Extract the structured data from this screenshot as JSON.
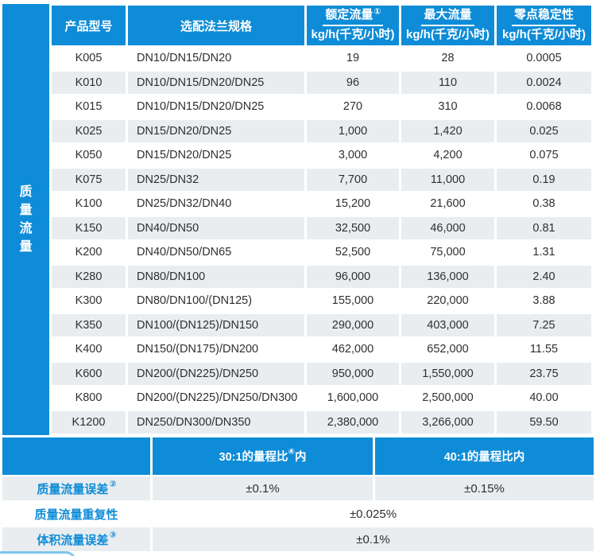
{
  "colors": {
    "accent_blue": "#0f8cd7",
    "row_alt_gray": "#e9edf0",
    "decor_light_blue": "#7ec6e9",
    "text_dark": "#2f2f2f"
  },
  "main_table": {
    "side_label": "质量流量",
    "side_label_chars": [
      "质",
      "量",
      "流",
      "量"
    ],
    "columns": [
      {
        "label": "产品型号",
        "sup": "",
        "unit": ""
      },
      {
        "label": "选配法兰规格",
        "sup": "",
        "unit": ""
      },
      {
        "label": "额定流量",
        "sup": "①",
        "unit": "kg/h(千克/小时)"
      },
      {
        "label": "最大流量",
        "sup": "",
        "unit": "kg/h(千克/小时)"
      },
      {
        "label": "零点稳定性",
        "sup": "",
        "unit": "kg/h(千克/小时)"
      }
    ],
    "rows": [
      {
        "model": "K005",
        "flange": "DN10/DN15/DN20",
        "rated": "19",
        "max": "28",
        "zero": "0.0005"
      },
      {
        "model": "K010",
        "flange": "DN10/DN15/DN20/DN25",
        "rated": "96",
        "max": "110",
        "zero": "0.0024"
      },
      {
        "model": "K015",
        "flange": "DN10/DN15/DN20/DN25",
        "rated": "270",
        "max": "310",
        "zero": "0.0068"
      },
      {
        "model": "K025",
        "flange": "DN15/DN20/DN25",
        "rated": "1,000",
        "max": "1,420",
        "zero": "0.025"
      },
      {
        "model": "K050",
        "flange": "DN15/DN20/DN25",
        "rated": "3,000",
        "max": "4,200",
        "zero": "0.075"
      },
      {
        "model": "K075",
        "flange": "DN25/DN32",
        "rated": "7,700",
        "max": "11,000",
        "zero": "0.19"
      },
      {
        "model": "K100",
        "flange": "DN25/DN32/DN40",
        "rated": "15,200",
        "max": "21,600",
        "zero": "0.38"
      },
      {
        "model": "K150",
        "flange": "DN40/DN50",
        "rated": "32,500",
        "max": "46,000",
        "zero": "0.81"
      },
      {
        "model": "K200",
        "flange": "DN40/DN50/DN65",
        "rated": "52,500",
        "max": "75,000",
        "zero": "1.31"
      },
      {
        "model": "K280",
        "flange": "DN80/DN100",
        "rated": "96,000",
        "max": "136,000",
        "zero": "2.40"
      },
      {
        "model": "K300",
        "flange": "DN80/DN100/(DN125)",
        "rated": "155,000",
        "max": "220,000",
        "zero": "3.88"
      },
      {
        "model": "K350",
        "flange": "DN100/(DN125)/DN150",
        "rated": "290,000",
        "max": "403,000",
        "zero": "7.25"
      },
      {
        "model": "K400",
        "flange": "DN150/(DN175)/DN200",
        "rated": "462,000",
        "max": "652,000",
        "zero": "11.55"
      },
      {
        "model": "K600",
        "flange": "DN200/(DN225)/DN250",
        "rated": "950,000",
        "max": "1,550,000",
        "zero": "23.75"
      },
      {
        "model": "K800",
        "flange": "DN200/(DN225)/DN250/DN300",
        "rated": "1,600,000",
        "max": "2,500,000",
        "zero": "40.00"
      },
      {
        "model": "K1200",
        "flange": "DN250/DN300/DN350",
        "rated": "2,380,000",
        "max": "3,266,000",
        "zero": "59.50"
      }
    ]
  },
  "accuracy_table": {
    "range_headers": [
      {
        "before": "30:1的量程比",
        "sup": "④",
        "after": "内"
      },
      {
        "before": "40:1的量程比内",
        "sup": "",
        "after": ""
      }
    ],
    "rows": [
      {
        "label": "质量流量误差",
        "sup": "②",
        "values": [
          "±0.1%",
          "±0.15%"
        ]
      },
      {
        "label": "质量流量重复性",
        "sup": "",
        "values": [
          "±0.025%"
        ]
      },
      {
        "label": "体积流量误差",
        "sup": "③",
        "values": [
          "±0.1%"
        ]
      }
    ]
  }
}
